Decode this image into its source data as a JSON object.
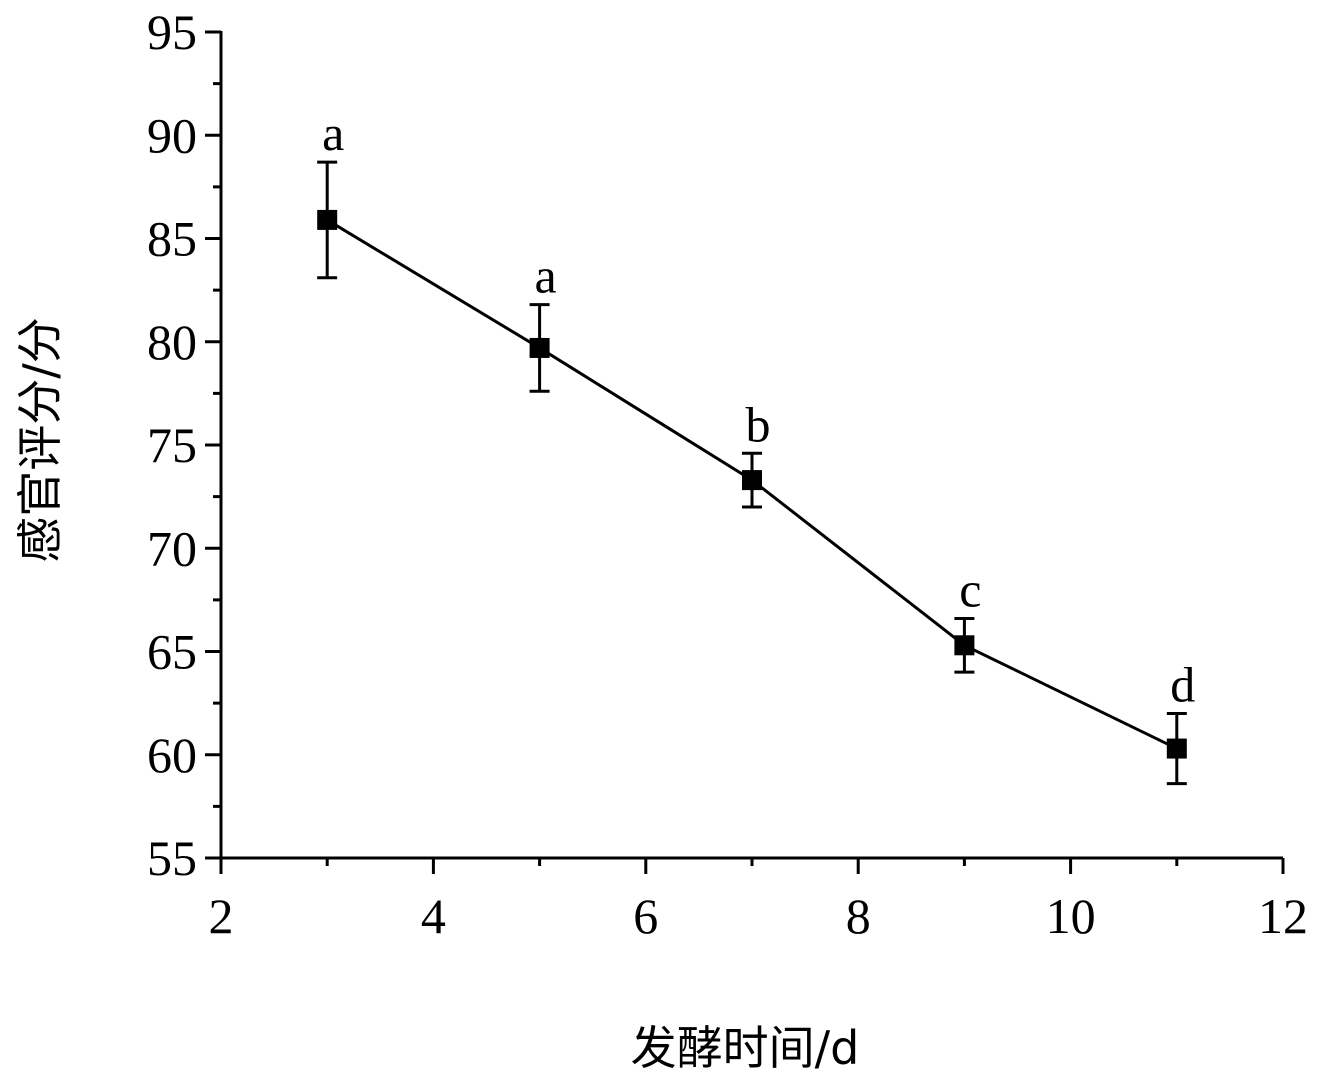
{
  "chart_data": {
    "type": "line",
    "title": "",
    "xlabel": "发酵时间/d",
    "ylabel": "感官评分/分",
    "xlim": [
      2,
      12
    ],
    "ylim": [
      55,
      95
    ],
    "x_ticks": [
      2,
      4,
      6,
      8,
      10,
      12
    ],
    "y_ticks": [
      55,
      60,
      65,
      70,
      75,
      80,
      85,
      90,
      95
    ],
    "grid": false,
    "series": [
      {
        "x": [
          3,
          5,
          7,
          9,
          11
        ],
        "y": [
          85.9,
          79.7,
          73.3,
          65.3,
          60.3
        ],
        "error": [
          2.8,
          2.1,
          1.3,
          1.3,
          1.7
        ],
        "labels": [
          "a",
          "a",
          "b",
          "c",
          "d"
        ],
        "color": "#000000",
        "marker": "square"
      }
    ]
  }
}
